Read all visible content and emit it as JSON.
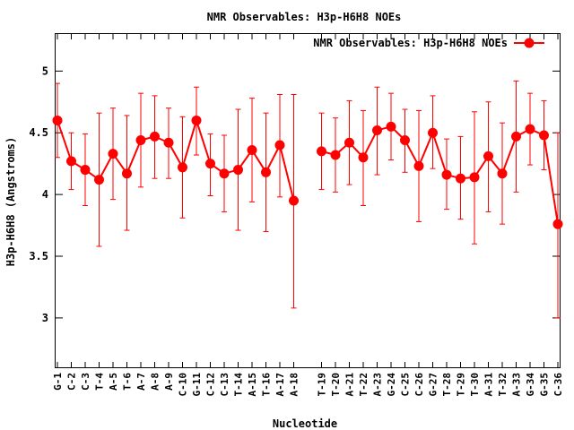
{
  "chart_data": {
    "type": "line",
    "title": "NMR Observables: H3p-H6H8 NOEs",
    "xlabel": "Nucleotide",
    "ylabel": "H3p-H6H8 (Angstroms)",
    "ylim": [
      2.6,
      5.3
    ],
    "yticks": [
      3,
      3.5,
      4,
      4.5,
      5
    ],
    "grid": false,
    "legend_position": "top-right",
    "color": "#ff0000",
    "categories": [
      "G-1",
      "C-2",
      "C-3",
      "T-4",
      "A-5",
      "T-6",
      "A-7",
      "A-8",
      "A-9",
      "C-10",
      "G-11",
      "C-12",
      "C-13",
      "T-14",
      "A-15",
      "T-16",
      "A-17",
      "A-18",
      "",
      "T-19",
      "T-20",
      "A-21",
      "T-22",
      "A-23",
      "G-24",
      "C-25",
      "C-26",
      "G-27",
      "T-28",
      "T-29",
      "T-30",
      "A-31",
      "T-32",
      "A-33",
      "G-34",
      "G-35",
      "C-36"
    ],
    "series": [
      {
        "name": "NMR Observables: H3p-H6H8 NOEs",
        "values": [
          4.6,
          4.27,
          4.2,
          4.12,
          4.33,
          4.17,
          4.44,
          4.47,
          4.42,
          4.22,
          4.6,
          4.25,
          4.17,
          4.2,
          4.36,
          4.18,
          4.4,
          3.95,
          null,
          4.35,
          4.32,
          4.42,
          4.3,
          4.52,
          4.55,
          4.44,
          4.23,
          4.5,
          4.16,
          4.13,
          4.14,
          4.31,
          4.17,
          4.47,
          4.53,
          4.48,
          3.76
        ],
        "err_low": [
          4.3,
          4.04,
          3.91,
          3.58,
          3.96,
          3.71,
          4.06,
          4.13,
          4.13,
          3.81,
          4.32,
          3.99,
          3.86,
          3.71,
          3.94,
          3.7,
          3.98,
          3.08,
          null,
          4.04,
          4.02,
          4.08,
          3.91,
          4.16,
          4.28,
          4.18,
          3.78,
          4.21,
          3.88,
          3.8,
          3.6,
          3.86,
          3.76,
          4.02,
          4.24,
          4.2,
          3.0
        ],
        "err_high": [
          4.9,
          4.5,
          4.49,
          4.66,
          4.7,
          4.64,
          4.82,
          4.8,
          4.7,
          4.63,
          4.87,
          4.49,
          4.48,
          4.69,
          4.78,
          4.66,
          4.81,
          4.81,
          null,
          4.66,
          4.62,
          4.76,
          4.68,
          4.87,
          4.82,
          4.69,
          4.68,
          4.8,
          4.45,
          4.47,
          4.67,
          4.75,
          4.58,
          4.92,
          4.82,
          4.76,
          4.5
        ]
      }
    ]
  }
}
